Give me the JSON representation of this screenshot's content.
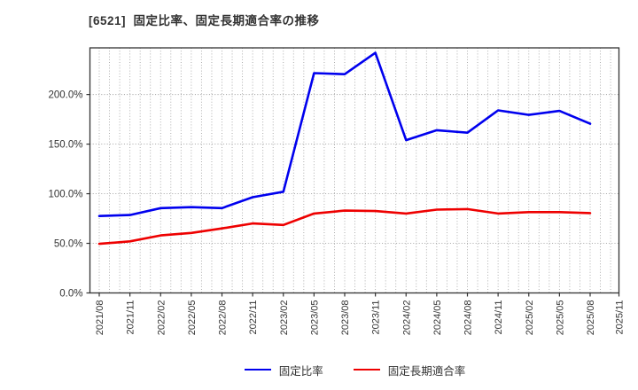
{
  "title": "[6521]  固定比率、固定長期適合率の推移",
  "chart_data": {
    "type": "line",
    "title": "[6521]  固定比率、固定長期適合率の推移",
    "categories": [
      "2021/08",
      "2021/11",
      "2022/02",
      "2022/05",
      "2022/08",
      "2022/11",
      "2023/02",
      "2023/05",
      "2023/08",
      "2023/11",
      "2024/02",
      "2024/05",
      "2024/08",
      "2024/11",
      "2025/02",
      "2025/05",
      "2025/08"
    ],
    "x_tick_labels": [
      "2021/08",
      "2021/11",
      "2022/02",
      "2022/05",
      "2022/08",
      "2022/11",
      "2023/02",
      "2023/05",
      "2023/08",
      "2023/11",
      "2024/02",
      "2024/05",
      "2024/08",
      "2024/11",
      "2025/02",
      "2025/05",
      "2025/08",
      "2025/11"
    ],
    "series": [
      {
        "name": "固定比率",
        "color": "#0000ee",
        "values": [
          77.5,
          78.5,
          85.5,
          86.5,
          85.5,
          96.5,
          102,
          221.5,
          220.5,
          242,
          154,
          164,
          161.5,
          184,
          179.5,
          183.5,
          170.5
        ]
      },
      {
        "name": "固定長期適合率",
        "color": "#ee0000",
        "values": [
          49.5,
          52,
          58,
          60.5,
          65,
          70,
          68.5,
          80,
          83,
          82.5,
          80,
          84,
          84.5,
          80,
          81.5,
          81.5,
          80.5
        ]
      }
    ],
    "y_axis": {
      "min": 0,
      "max": 247,
      "ticks": [
        0,
        50,
        100,
        150,
        200
      ],
      "tick_suffix": "%",
      "tick_decimals": 1
    },
    "x_axis": {
      "months_per_point": 3,
      "minor_grid": "monthly",
      "label_rotation_deg": 90
    },
    "grid": {
      "style": "dotted",
      "color": "#a6a6a6"
    },
    "frame_color": "#333333",
    "tick_label_color": "#333333",
    "legend_position": "bottom-center"
  },
  "legend": {
    "items": [
      {
        "label": "固定比率",
        "color": "#0000ee"
      },
      {
        "label": "固定長期適合率",
        "color": "#ee0000"
      }
    ]
  }
}
